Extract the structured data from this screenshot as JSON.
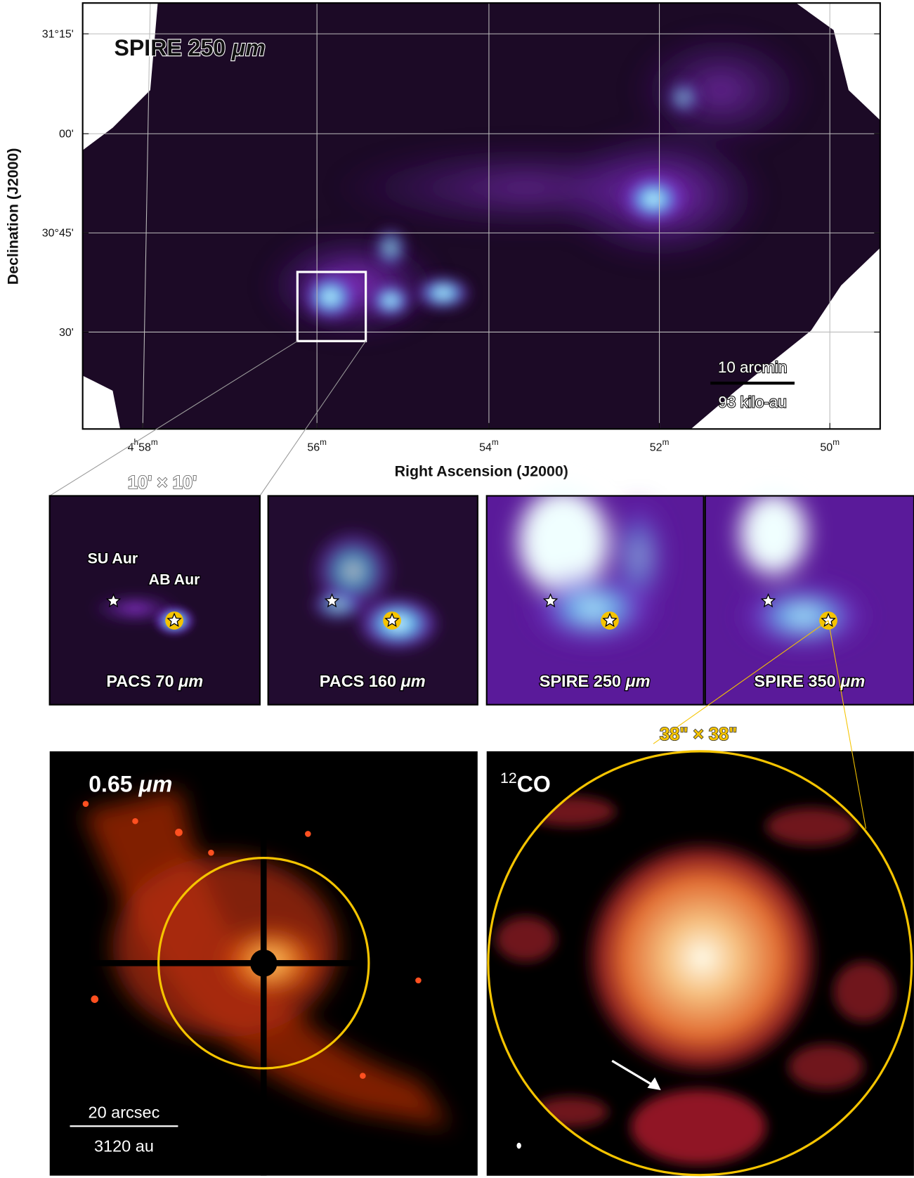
{
  "main_panel": {
    "title": "SPIRE 250",
    "title_unit": "μm",
    "y_axis_label": "Declination (J2000)",
    "x_axis_label": "Right Ascension (J2000)",
    "y_ticks": [
      "31°15'",
      "00'",
      "30°45'",
      "30'"
    ],
    "x_ticks": [
      {
        "hours": "4",
        "h": "h",
        "minutes": "58",
        "m": "m"
      },
      {
        "minutes": "56",
        "m": "m"
      },
      {
        "minutes": "54",
        "m": "m"
      },
      {
        "minutes": "52",
        "m": "m"
      },
      {
        "minutes": "50",
        "m": "m"
      }
    ],
    "scale_bar": {
      "top": "10 arcmin",
      "bottom": "93 kilo-au"
    }
  },
  "zoom_label": "10' × 10'",
  "star_labels": [
    "SU Aur",
    "AB Aur"
  ],
  "panels": [
    {
      "label": "PACS 70",
      "unit": "μm"
    },
    {
      "label": "PACS 160",
      "unit": "μm"
    },
    {
      "label": "SPIRE 250",
      "unit": "μm"
    },
    {
      "label": "SPIRE 350",
      "unit": "μm"
    }
  ],
  "zoom2_label": "38\" × 38\"",
  "optical": {
    "label": "0.65",
    "unit": "μm",
    "scale_bar": {
      "top": "20 arcsec",
      "bottom": "3120 au"
    }
  },
  "co": {
    "sup": "12",
    "label": "CO"
  }
}
